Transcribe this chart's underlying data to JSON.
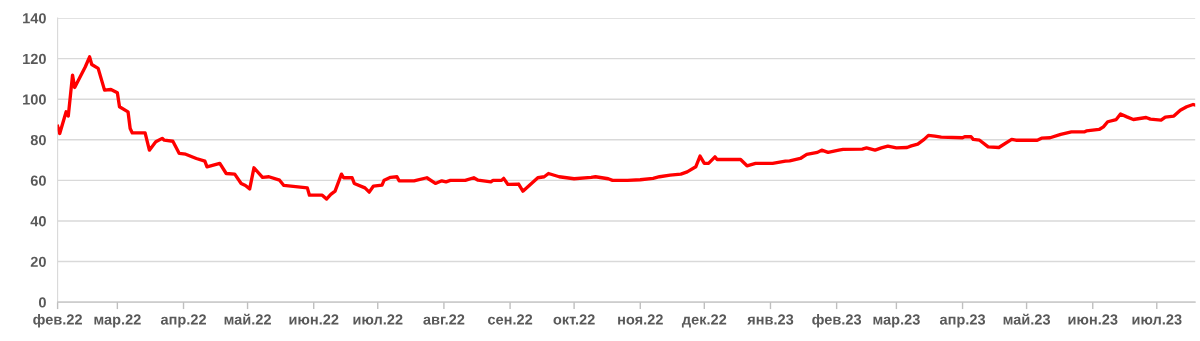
{
  "chart_data": {
    "type": "line",
    "x": [
      "2022-02-01",
      "2022-02-02",
      "2022-02-05",
      "2022-02-06",
      "2022-02-08",
      "2022-02-09",
      "2022-02-14",
      "2022-02-16",
      "2022-02-17",
      "2022-02-20",
      "2022-02-23",
      "2022-02-26",
      "2022-03-01",
      "2022-03-02",
      "2022-03-06",
      "2022-03-07",
      "2022-03-08",
      "2022-03-14",
      "2022-03-16",
      "2022-03-19",
      "2022-03-22",
      "2022-03-23",
      "2022-03-27",
      "2022-03-30",
      "2022-04-02",
      "2022-04-07",
      "2022-04-11",
      "2022-04-12",
      "2022-04-18",
      "2022-04-21",
      "2022-04-25",
      "2022-04-28",
      "2022-04-30",
      "2022-05-02",
      "2022-05-04",
      "2022-05-08",
      "2022-05-11",
      "2022-05-16",
      "2022-05-18",
      "2022-05-29",
      "2022-05-30",
      "2022-06-05",
      "2022-06-07",
      "2022-06-09",
      "2022-06-11",
      "2022-06-14",
      "2022-06-15",
      "2022-06-19",
      "2022-06-20",
      "2022-06-25",
      "2022-06-27",
      "2022-06-29",
      "2022-07-03",
      "2022-07-04",
      "2022-07-07",
      "2022-07-10",
      "2022-07-11",
      "2022-07-18",
      "2022-07-24",
      "2022-07-28",
      "2022-07-31",
      "2022-08-02",
      "2022-08-04",
      "2022-08-11",
      "2022-08-15",
      "2022-08-17",
      "2022-08-23",
      "2022-08-24",
      "2022-08-28",
      "2022-08-29",
      "2022-08-31",
      "2022-09-05",
      "2022-09-07",
      "2022-09-14",
      "2022-09-17",
      "2022-09-19",
      "2022-09-24",
      "2022-10-01",
      "2022-10-09",
      "2022-10-11",
      "2022-10-17",
      "2022-10-19",
      "2022-10-26",
      "2022-11-01",
      "2022-11-07",
      "2022-11-10",
      "2022-11-15",
      "2022-11-20",
      "2022-11-23",
      "2022-11-27",
      "2022-11-29",
      "2022-12-01",
      "2022-12-03",
      "2022-12-06",
      "2022-12-07",
      "2022-12-18",
      "2022-12-21",
      "2022-12-25",
      "2023-01-02",
      "2023-01-08",
      "2023-01-10",
      "2023-01-15",
      "2023-01-18",
      "2023-01-23",
      "2023-01-25",
      "2023-01-28",
      "2023-02-02",
      "2023-02-04",
      "2023-02-13",
      "2023-02-15",
      "2023-02-19",
      "2023-02-22",
      "2023-02-25",
      "2023-03-01",
      "2023-03-06",
      "2023-03-08",
      "2023-03-11",
      "2023-03-14",
      "2023-03-16",
      "2023-03-19",
      "2023-03-22",
      "2023-04-01",
      "2023-04-02",
      "2023-04-05",
      "2023-04-06",
      "2023-04-09",
      "2023-04-13",
      "2023-04-18",
      "2023-04-24",
      "2023-04-26",
      "2023-05-06",
      "2023-05-08",
      "2023-05-12",
      "2023-05-17",
      "2023-05-22",
      "2023-05-28",
      "2023-05-29",
      "2023-06-04",
      "2023-06-06",
      "2023-06-08",
      "2023-06-12",
      "2023-06-14",
      "2023-06-17",
      "2023-06-20",
      "2023-06-26",
      "2023-06-28",
      "2023-07-03",
      "2023-07-05",
      "2023-07-09",
      "2023-07-12",
      "2023-07-15",
      "2023-07-18",
      "2023-07-19"
    ],
    "series": [
      {
        "color": "#ff0000",
        "values": [
          86.7,
          83.1,
          93.8,
          91.7,
          111.9,
          105.8,
          116.0,
          120.9,
          117.1,
          115.2,
          104.5,
          104.8,
          103.2,
          96.3,
          93.8,
          85.6,
          83.4,
          83.4,
          74.9,
          79.0,
          80.7,
          79.8,
          79.3,
          73.3,
          72.9,
          70.8,
          69.5,
          66.7,
          68.4,
          63.4,
          63.1,
          58.5,
          57.5,
          55.8,
          66.2,
          61.5,
          61.8,
          60.1,
          57.5,
          56.3,
          52.7,
          52.7,
          50.8,
          53.1,
          54.7,
          63.1,
          61.3,
          61.3,
          58.5,
          56.3,
          54.2,
          57.2,
          57.7,
          60.1,
          61.5,
          61.8,
          59.8,
          59.8,
          61.3,
          58.5,
          59.8,
          59.3,
          60.0,
          60.0,
          61.3,
          60.1,
          59.3,
          60.0,
          60.0,
          61.0,
          58.0,
          58.2,
          54.7,
          61.3,
          61.8,
          63.4,
          61.8,
          60.8,
          61.5,
          61.8,
          60.8,
          60.0,
          60.0,
          60.3,
          61.0,
          61.8,
          62.6,
          63.1,
          64.2,
          66.7,
          72.0,
          68.4,
          68.4,
          71.6,
          70.3,
          70.3,
          67.2,
          68.4,
          68.4,
          69.5,
          69.6,
          70.8,
          72.8,
          73.8,
          74.9,
          73.8,
          74.9,
          75.3,
          75.4,
          76.0,
          74.9,
          76.0,
          76.9,
          76.0,
          76.2,
          77.0,
          77.9,
          80.2,
          82.2,
          81.8,
          81.3,
          81.0,
          81.5,
          81.5,
          80.2,
          79.8,
          76.5,
          76.2,
          80.2,
          79.8,
          79.8,
          80.8,
          81.0,
          82.7,
          83.9,
          83.9,
          84.4,
          85.1,
          86.4,
          88.9,
          90.0,
          92.7,
          91.3,
          90.0,
          91.0,
          90.2,
          89.7,
          91.2,
          91.7,
          94.6,
          96.3,
          97.4,
          97.1
        ]
      }
    ],
    "xlim": [
      "2022-02-01",
      "2023-07-19"
    ],
    "xticks": [
      {
        "value": "2022-02-01",
        "label": "фев.22"
      },
      {
        "value": "2022-03-01",
        "label": "мар.22"
      },
      {
        "value": "2022-04-01",
        "label": "апр.22"
      },
      {
        "value": "2022-05-01",
        "label": "май.22"
      },
      {
        "value": "2022-06-01",
        "label": "июн.22"
      },
      {
        "value": "2022-07-01",
        "label": "июл.22"
      },
      {
        "value": "2022-08-01",
        "label": "авг.22"
      },
      {
        "value": "2022-09-01",
        "label": "сен.22"
      },
      {
        "value": "2022-10-01",
        "label": "окт.22"
      },
      {
        "value": "2022-11-01",
        "label": "ноя.22"
      },
      {
        "value": "2022-12-01",
        "label": "дек.22"
      },
      {
        "value": "2023-01-01",
        "label": "янв.23"
      },
      {
        "value": "2023-02-01",
        "label": "фев.23"
      },
      {
        "value": "2023-03-01",
        "label": "мар.23"
      },
      {
        "value": "2023-04-01",
        "label": "апр.23"
      },
      {
        "value": "2023-05-01",
        "label": "май.23"
      },
      {
        "value": "2023-06-01",
        "label": "июн.23"
      },
      {
        "value": "2023-07-01",
        "label": "июл.23"
      }
    ],
    "ylim": [
      0,
      140
    ],
    "yticks": [
      0,
      20,
      40,
      60,
      80,
      100,
      120,
      140
    ],
    "grid": "y",
    "marker": "none",
    "line_style": "solid"
  }
}
